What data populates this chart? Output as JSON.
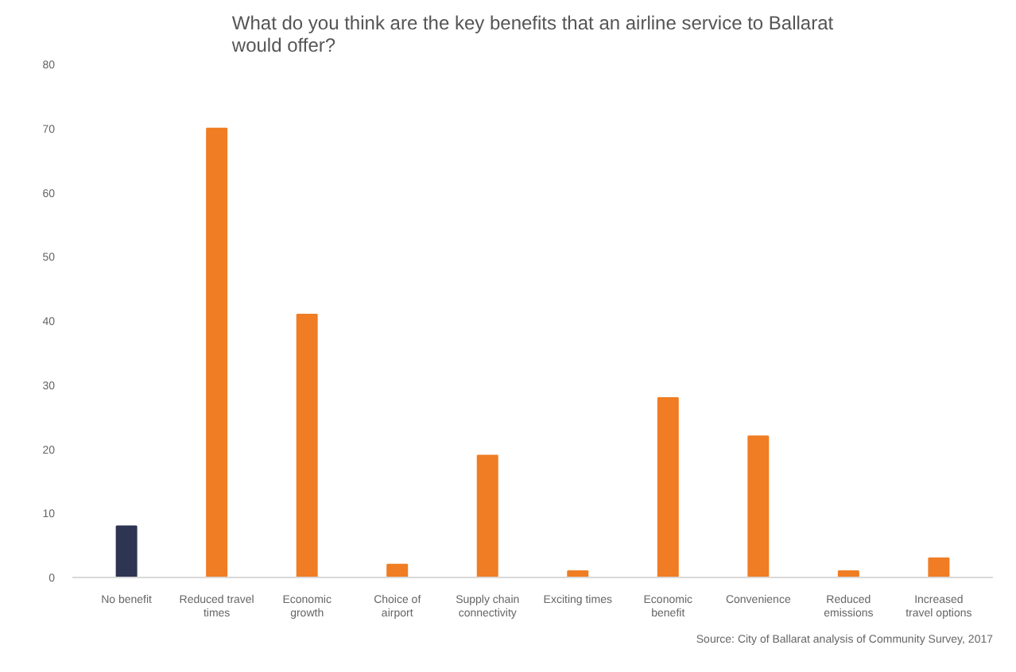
{
  "chart_data": {
    "type": "bar",
    "title": "What do you think are the key benefits that an airline service to Ballarat would offer?",
    "categories": [
      "No benefit",
      "Reduced travel times",
      "Economic growth",
      "Choice of airport",
      "Supply chain connectivity",
      "Exciting times",
      "Economic benefit",
      "Convenience",
      "Reduced emissions",
      "Increased travel options"
    ],
    "values": [
      8,
      70,
      41,
      2,
      19,
      1,
      28,
      22,
      1,
      3
    ],
    "colors": [
      "#2e3552",
      "#f07d23",
      "#f07d23",
      "#f07d23",
      "#f07d23",
      "#f07d23",
      "#f07d23",
      "#f07d23",
      "#f07d23",
      "#f07d23"
    ],
    "ylim": [
      0,
      80
    ],
    "yticks": [
      0,
      10,
      20,
      30,
      40,
      50,
      60,
      70,
      80
    ],
    "grid": false,
    "annotations": [
      "Source: City of Ballarat analysis of Community Survey, 2017"
    ]
  }
}
